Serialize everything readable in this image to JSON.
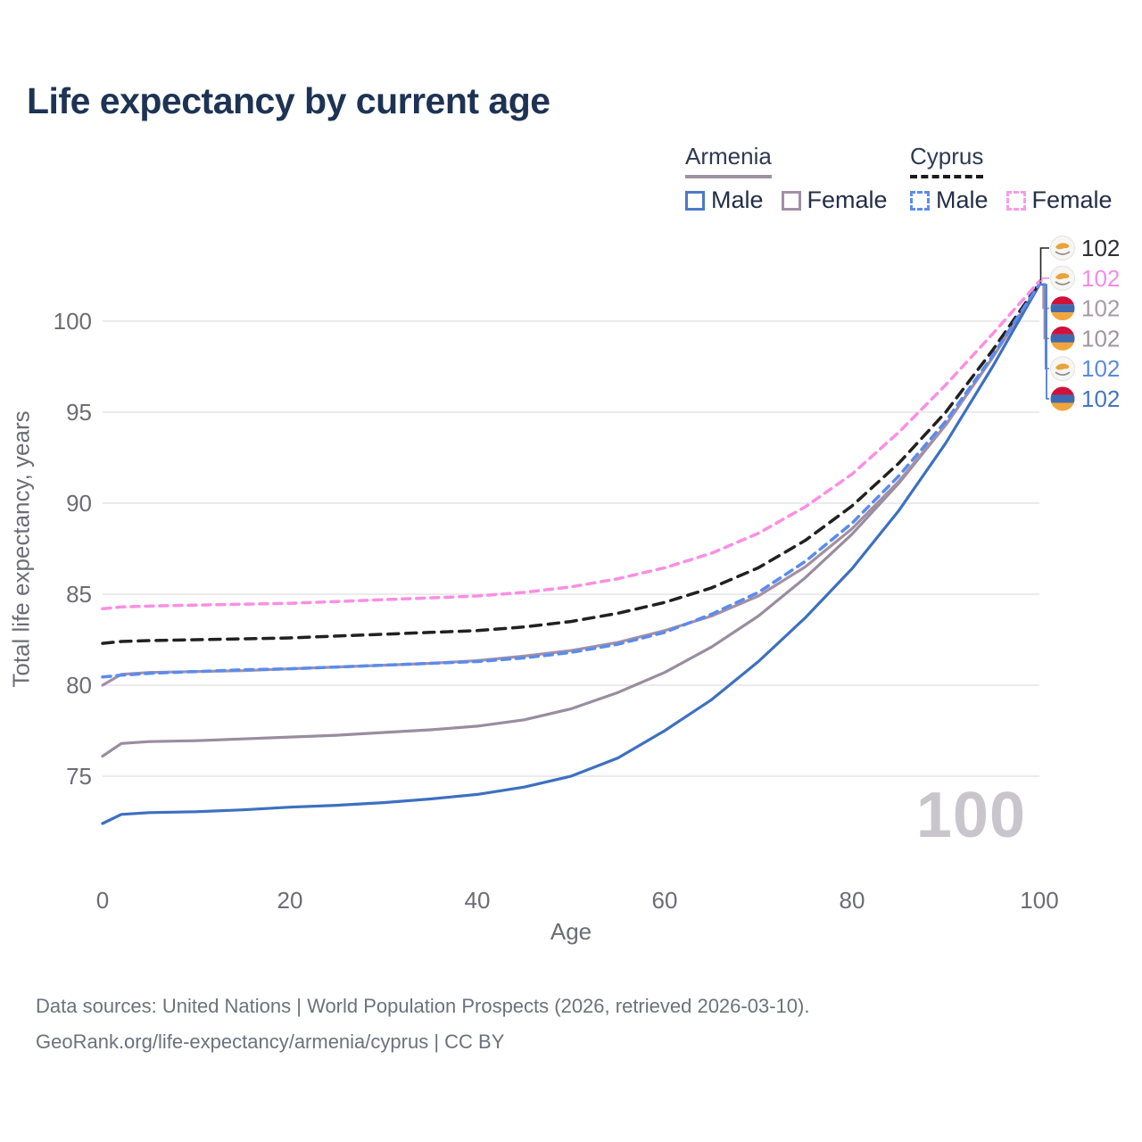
{
  "title": "Life expectancy by current age",
  "legend": {
    "groups": [
      {
        "name": "Armenia",
        "line_style": "solid",
        "underline_color": "#9e92a2",
        "items": [
          {
            "label": "Male",
            "color": "#4b79c9",
            "box_style": "solid"
          },
          {
            "label": "Female",
            "color": "#a48fa6",
            "box_style": "solid"
          }
        ]
      },
      {
        "name": "Cyprus",
        "line_style": "dashed",
        "underline_color": "#1b1b1b",
        "items": [
          {
            "label": "Male",
            "color": "#5b8cf0",
            "box_style": "dashed"
          },
          {
            "label": "Female",
            "color": "#fb9ae6",
            "box_style": "dashed"
          }
        ]
      }
    ]
  },
  "chart_data": {
    "type": "line",
    "title": "Life expectancy by current age",
    "xlabel": "Age",
    "ylabel": "Total life expectancy, years",
    "xlim": [
      0,
      100
    ],
    "ylim": [
      71.8,
      103
    ],
    "x_ticks": [
      0,
      20,
      40,
      60,
      80,
      100
    ],
    "y_ticks": [
      75,
      80,
      85,
      90,
      95,
      100
    ],
    "grid": "horizontal",
    "legend_position": "top-right",
    "x": [
      0,
      2,
      5,
      10,
      15,
      20,
      25,
      30,
      35,
      40,
      45,
      50,
      55,
      60,
      65,
      70,
      75,
      80,
      85,
      90,
      95,
      100
    ],
    "series": [
      {
        "name": "Armenia Total",
        "country": "armenia",
        "sex": "total",
        "style": "solid",
        "color": "#998da0",
        "label_color": "#a194a2",
        "end_label": "102",
        "label_row": 3,
        "values": [
          76.1,
          76.8,
          76.9,
          76.95,
          77.05,
          77.15,
          77.25,
          77.4,
          77.55,
          77.75,
          78.1,
          78.7,
          79.6,
          80.7,
          82.1,
          83.8,
          85.9,
          88.3,
          91.1,
          94.3,
          98.0,
          102.0
        ]
      },
      {
        "name": "Armenia Female",
        "country": "armenia",
        "sex": "female",
        "style": "solid",
        "color": "#a390a5",
        "label_color": "#a89aa9",
        "end_label": "102",
        "label_row": 2,
        "values": [
          80.0,
          80.6,
          80.7,
          80.75,
          80.8,
          80.9,
          81.0,
          81.1,
          81.2,
          81.35,
          81.6,
          81.9,
          82.35,
          83.0,
          83.8,
          84.9,
          86.5,
          88.6,
          91.2,
          94.3,
          98.0,
          102.0
        ]
      },
      {
        "name": "Armenia Male",
        "country": "armenia",
        "sex": "male",
        "style": "solid",
        "color": "#3d70c0",
        "label_color": "#4376c2",
        "end_label": "102",
        "label_row": 5,
        "values": [
          72.4,
          72.9,
          73.0,
          73.05,
          73.15,
          73.3,
          73.4,
          73.55,
          73.75,
          74.0,
          74.4,
          75.0,
          76.0,
          77.5,
          79.2,
          81.3,
          83.7,
          86.4,
          89.6,
          93.3,
          97.5,
          102.0
        ]
      },
      {
        "name": "Cyprus Total",
        "country": "cyprus",
        "sex": "total",
        "style": "dashed",
        "color": "#212121",
        "label_color": "#2e2e36",
        "end_label": "102",
        "label_row": 0,
        "values": [
          82.3,
          82.4,
          82.45,
          82.5,
          82.55,
          82.6,
          82.7,
          82.8,
          82.9,
          83.0,
          83.2,
          83.5,
          83.95,
          84.55,
          85.35,
          86.45,
          87.95,
          89.85,
          92.2,
          95.0,
          98.4,
          102.1
        ]
      },
      {
        "name": "Cyprus Male",
        "country": "cyprus",
        "sex": "male",
        "style": "dashed",
        "color": "#5a8bef",
        "label_color": "#5a8be0",
        "end_label": "102",
        "label_row": 4,
        "values": [
          80.45,
          80.55,
          80.65,
          80.75,
          80.85,
          80.9,
          81.0,
          81.1,
          81.2,
          81.3,
          81.5,
          81.8,
          82.25,
          82.9,
          83.9,
          85.1,
          86.8,
          88.9,
          91.5,
          94.5,
          98.1,
          102.05
        ]
      },
      {
        "name": "Cyprus Female",
        "country": "cyprus",
        "sex": "female",
        "style": "dashed",
        "color": "#fb8fe3",
        "label_color": "#f78ce4",
        "end_label": "102",
        "label_row": 1,
        "values": [
          84.2,
          84.3,
          84.35,
          84.4,
          84.45,
          84.5,
          84.6,
          84.7,
          84.8,
          84.9,
          85.1,
          85.4,
          85.85,
          86.45,
          87.25,
          88.35,
          89.8,
          91.6,
          93.9,
          96.5,
          99.3,
          102.2
        ]
      }
    ],
    "flag_colors": {
      "armenia": [
        "#d0123b",
        "#3f6ab0",
        "#f2a53b"
      ],
      "cyprus_bg": "#f7f6f3",
      "cyprus_island": "#e8a43c",
      "cyprus_branch": "#8b8b8b"
    }
  },
  "watermark": "100",
  "footer": {
    "line1": "Data sources: United Nations | World Population Prospects (2026, retrieved 2026-03-10).",
    "line2": "GeoRank.org/life-expectancy/armenia/cyprus | CC BY"
  },
  "colors": {
    "title": "#1e3354",
    "axis_text": "#6c6c76",
    "gridline": "#ebebee",
    "watermark": "#c9c5cd",
    "footer_text": "#6d717c"
  }
}
